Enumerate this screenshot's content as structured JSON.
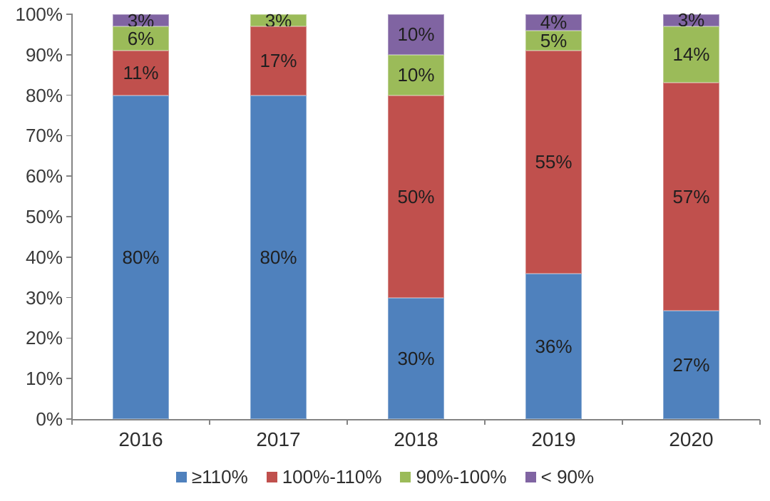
{
  "chart_data": {
    "type": "bar",
    "subtype": "stacked-100-percent-column",
    "title": "",
    "xlabel": "",
    "ylabel": "",
    "grid": false,
    "categories": [
      "2016",
      "2017",
      "2018",
      "2019",
      "2020"
    ],
    "series": [
      {
        "name": "≥110%",
        "color": "#4F81BD",
        "values": [
          80,
          80,
          30,
          36,
          27
        ]
      },
      {
        "name": "100%-110%",
        "color": "#C0504D",
        "values": [
          11,
          17,
          50,
          55,
          57
        ]
      },
      {
        "name": "90%-100%",
        "color": "#9BBB59",
        "values": [
          6,
          3,
          10,
          5,
          14
        ]
      },
      {
        "name": "< 90%",
        "color": "#8064A2",
        "values": [
          3,
          0,
          10,
          4,
          3
        ]
      }
    ],
    "data_labels": [
      [
        "80%",
        "11%",
        "6%",
        "3%"
      ],
      [
        "80%",
        "17%",
        "3%",
        ""
      ],
      [
        "30%",
        "50%",
        "10%",
        "10%"
      ],
      [
        "36%",
        "55%",
        "5%",
        "4%"
      ],
      [
        "27%",
        "57%",
        "14%",
        "3%"
      ]
    ],
    "y_axis": {
      "min": 0,
      "max": 100,
      "step": 10,
      "tick_labels": [
        "0%",
        "10%",
        "20%",
        "30%",
        "40%",
        "50%",
        "60%",
        "70%",
        "80%",
        "90%",
        "100%"
      ]
    },
    "legend": {
      "position": "bottom",
      "items": [
        "≥110%",
        "100%-110%",
        "90%-100%",
        "< 90%"
      ]
    },
    "colors": {
      "axis": "#848484",
      "axis_text": "#3a3a3a",
      "label_text": "#1f1f1f",
      "background": "#ffffff"
    }
  }
}
